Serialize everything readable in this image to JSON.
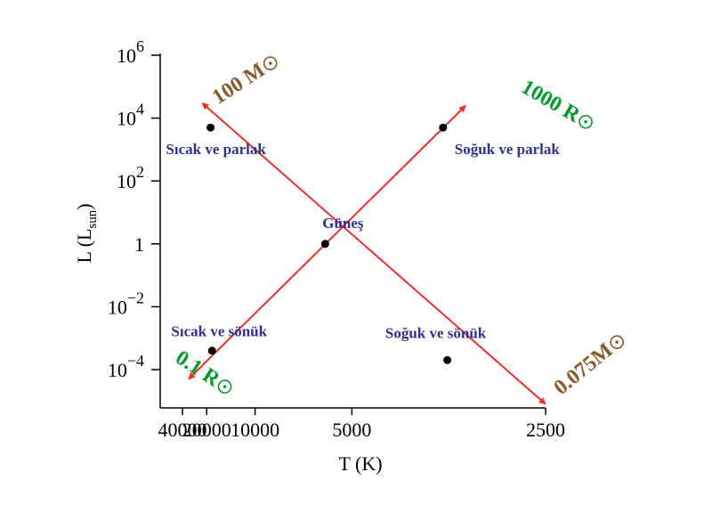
{
  "chart_data": {
    "type": "scatter",
    "xlabel": "T (K)",
    "ylabel_main": "L (L",
    "ylabel_sub": "sun",
    "ylabel_close": ")",
    "x_scale": "reciprocal",
    "x_reversed": true,
    "x_range": [
      46000,
      2500
    ],
    "y_scale": "log",
    "y_range": [
      1e-05,
      1000000.0
    ],
    "x_ticks": [
      {
        "value": 40000,
        "label": "40000"
      },
      {
        "value": 20000,
        "label": "20000"
      },
      {
        "value": 10000,
        "label": "10000"
      },
      {
        "value": 5000,
        "label": "5000"
      },
      {
        "value": 2500,
        "label": "2500"
      }
    ],
    "y_ticks": [
      {
        "value": 1000000.0,
        "base": "10",
        "exp": "6"
      },
      {
        "value": 10000.0,
        "base": "10",
        "exp": "4"
      },
      {
        "value": 100.0,
        "base": "10",
        "exp": "2"
      },
      {
        "value": 1,
        "base": "1",
        "exp": ""
      },
      {
        "value": 0.01,
        "base": "10",
        "exp": "−2"
      },
      {
        "value": 0.0001,
        "base": "10",
        "exp": "−4"
      }
    ],
    "points": [
      {
        "label": "Sıcak  ve parlak",
        "T": 18500,
        "L": 5000
      },
      {
        "label": "Soğuk  ve parlak",
        "T": 3400,
        "L": 5000
      },
      {
        "label": "Güneş",
        "T": 5800,
        "L": 1
      },
      {
        "label": "Sıcak ve sönük",
        "T": 18000,
        "L": 0.0004
      },
      {
        "label": "Soğuk  ve sönük",
        "T": 3350,
        "L": 0.0002
      }
    ],
    "lines": [
      {
        "name": "mass",
        "from": {
          "T": 22000,
          "L": 30000
        },
        "to": {
          "T": 2500,
          "L": 8e-06
        },
        "color": "#e8302a"
      },
      {
        "name": "radius",
        "from": {
          "T": 32000,
          "L": 5e-05
        },
        "to": {
          "T": 3150,
          "L": 25000
        },
        "color": "#e8302a"
      }
    ],
    "annotations": [
      {
        "text": "100 M",
        "color": "#8a5a2b",
        "sun_symbol": true
      },
      {
        "text": "0.075M",
        "color": "#8a5a2b",
        "sun_symbol": true
      },
      {
        "text": "1000 R",
        "color": "#009a2e",
        "sun_symbol": true
      },
      {
        "text": "0.1 R",
        "color": "#009a2e",
        "sun_symbol": true
      }
    ]
  }
}
